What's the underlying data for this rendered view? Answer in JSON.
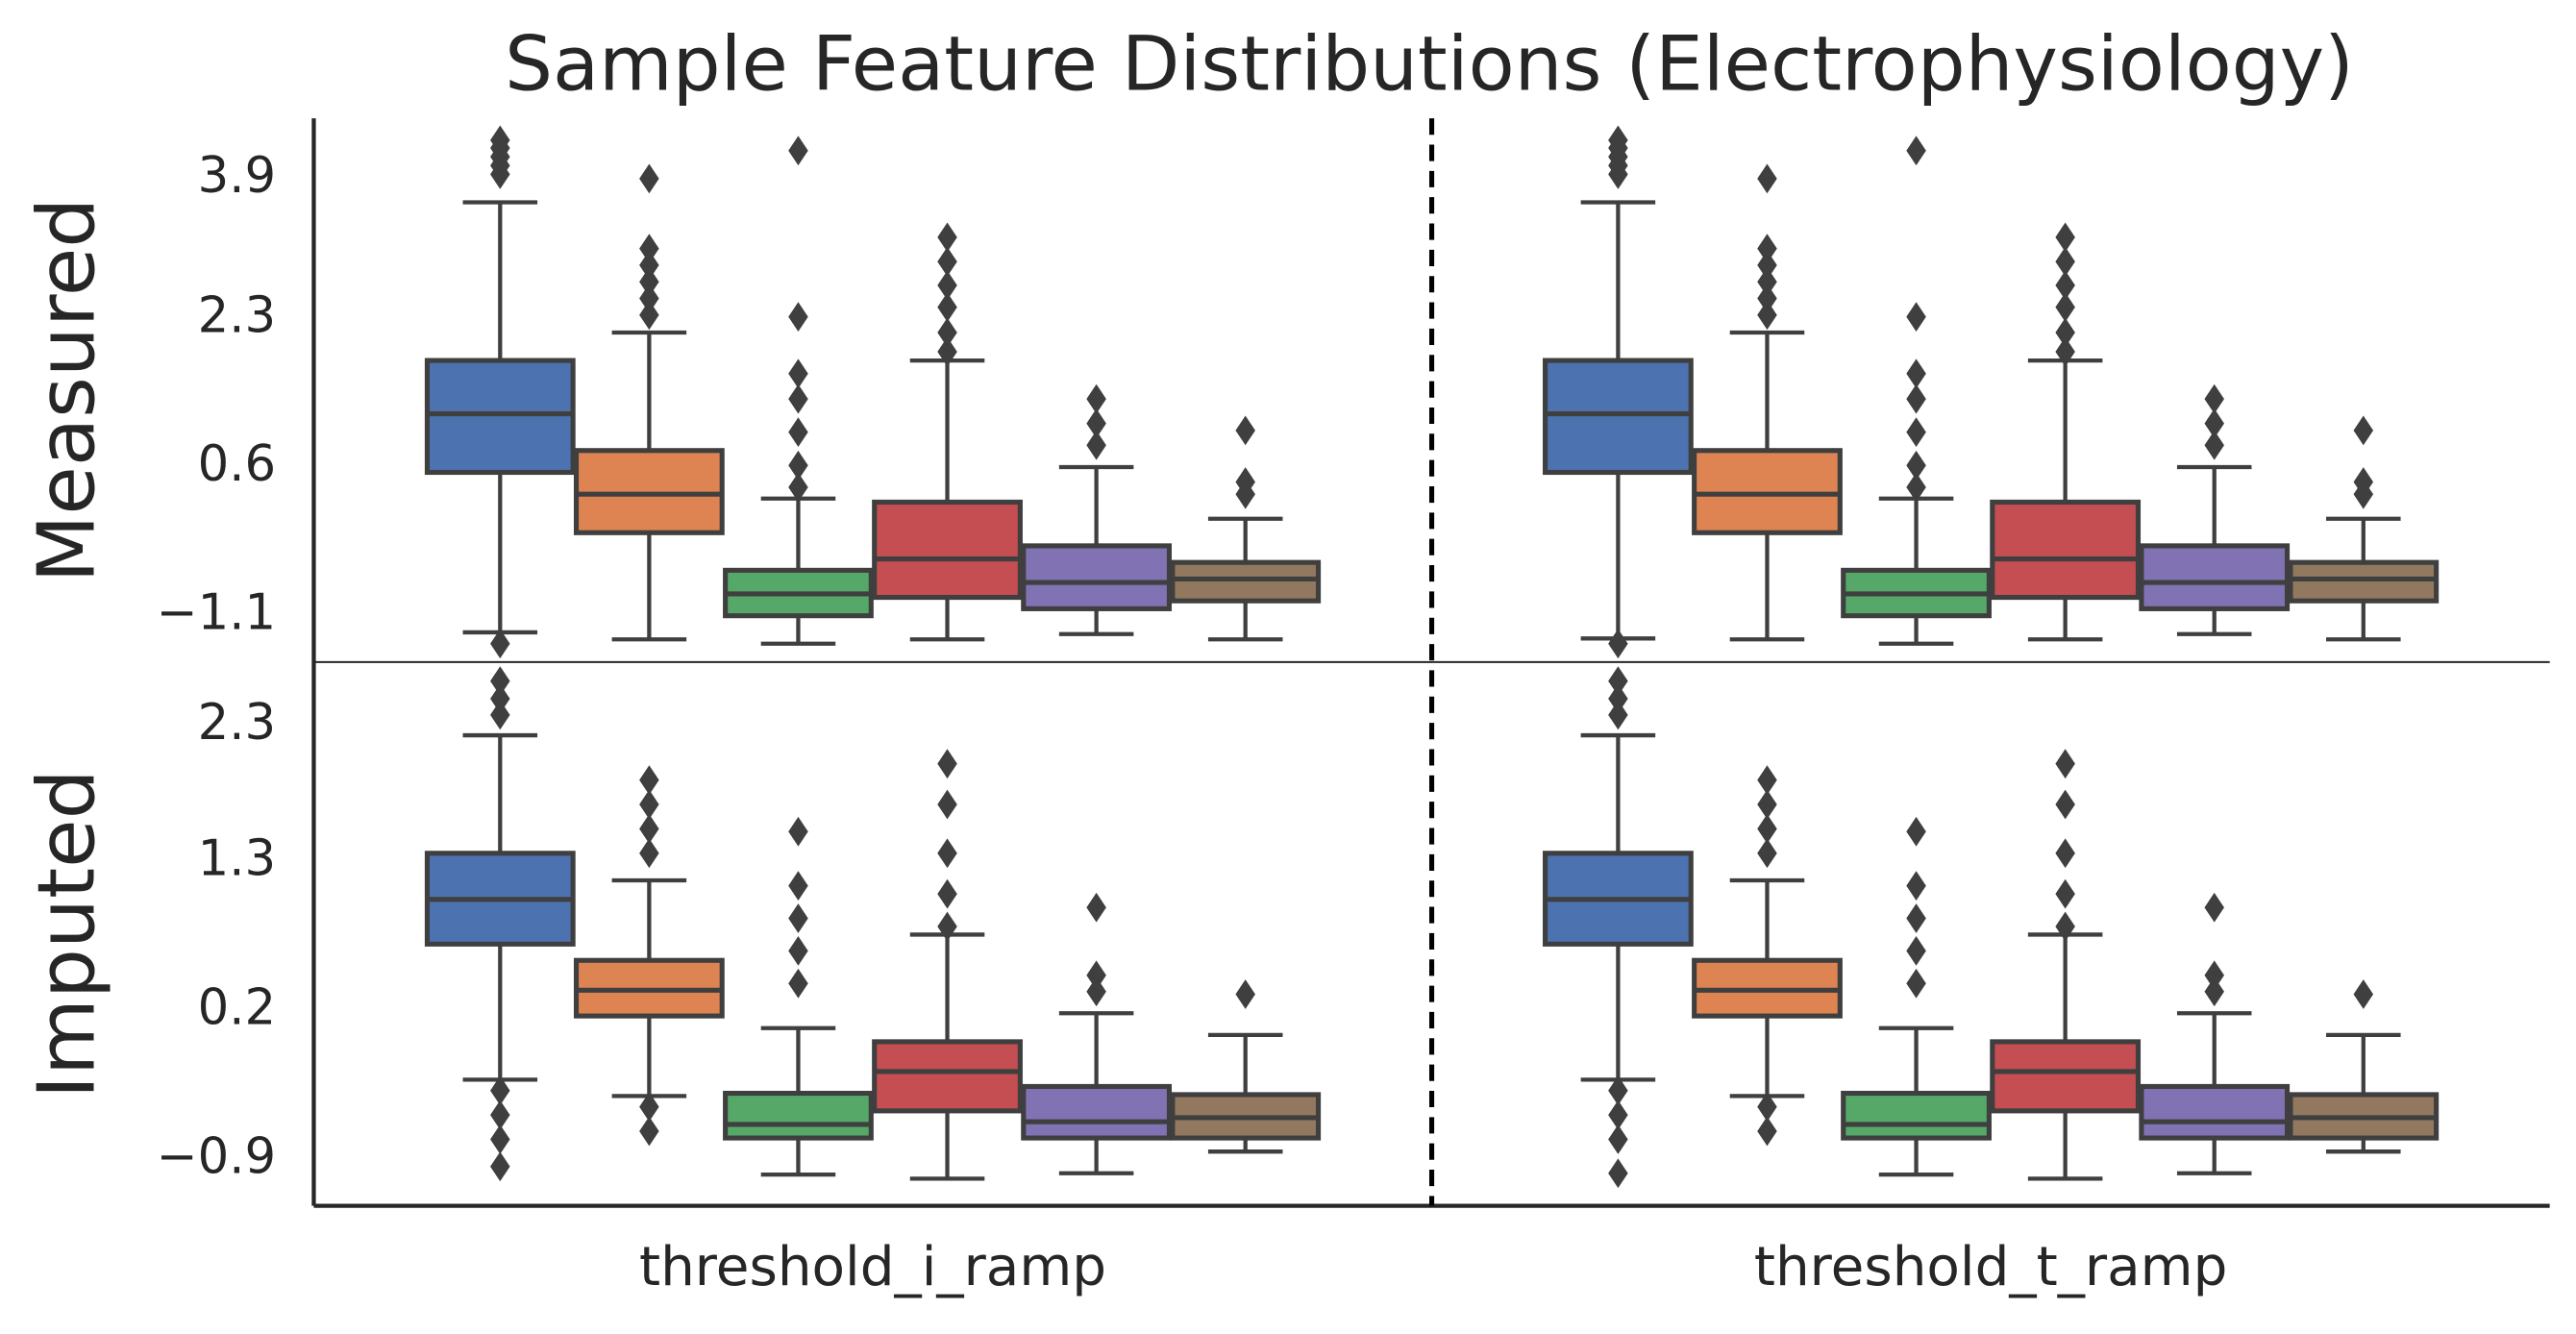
{
  "chart_data": {
    "type": "box",
    "title": "Sample Feature Distributions (Electrophysiology)",
    "categories": [
      "threshold_i_ramp",
      "threshold_t_ramp"
    ],
    "panels": [
      {
        "ylabel": "Measured",
        "ylim": [
          -1.63,
          4.59
        ],
        "yticks": [
          {
            "value": -1.1,
            "label": "−1.1"
          },
          0.6,
          2.3,
          3.9
        ],
        "series": [
          {
            "color": "#4c72b0",
            "whislo": [
              -1.29,
              -1.36
            ],
            "q1": [
              0.54,
              0.54
            ],
            "median": [
              1.21,
              1.21
            ],
            "q3": [
              1.82,
              1.82
            ],
            "whishi": [
              3.63,
              3.63
            ],
            "fliers": [
              [
                4.34,
                4.25,
                4.15,
                4.05,
                3.95,
                -1.42
              ],
              [
                4.34,
                4.25,
                4.15,
                4.05,
                3.95,
                -1.42
              ]
            ]
          },
          {
            "color": "#dd8452",
            "whislo": [
              -1.37,
              -1.37
            ],
            "q1": [
              -0.15,
              -0.15
            ],
            "median": [
              0.29,
              0.29
            ],
            "q3": [
              0.79,
              0.79
            ],
            "whishi": [
              2.14,
              2.14
            ],
            "fliers": [
              [
                3.9,
                3.1,
                2.91,
                2.72,
                2.53,
                2.34
              ],
              [
                3.9,
                3.1,
                2.91,
                2.72,
                2.53,
                2.34
              ]
            ]
          },
          {
            "color": "#55a868",
            "whislo": [
              -1.42,
              -1.42
            ],
            "q1": [
              -1.1,
              -1.1
            ],
            "median": [
              -0.85,
              -0.85
            ],
            "q3": [
              -0.58,
              -0.58
            ],
            "whishi": [
              0.24,
              0.24
            ],
            "fliers": [
              [
                4.22,
                2.32,
                1.67,
                1.38,
                1.0,
                0.62,
                0.37
              ],
              [
                4.22,
                2.32,
                1.67,
                1.38,
                1.0,
                0.62,
                0.37
              ]
            ]
          },
          {
            "color": "#c44e52",
            "whislo": [
              -1.37,
              -1.37
            ],
            "q1": [
              -0.89,
              -0.89
            ],
            "median": [
              -0.45,
              -0.45
            ],
            "q3": [
              0.2,
              0.2
            ],
            "whishi": [
              1.82,
              1.82
            ],
            "fliers": [
              [
                3.23,
                2.95,
                2.68,
                2.43,
                2.14,
                1.92
              ],
              [
                3.23,
                2.95,
                2.68,
                2.43,
                2.14,
                1.92
              ]
            ]
          },
          {
            "color": "#8172b3",
            "whislo": [
              -1.31,
              -1.31
            ],
            "q1": [
              -1.02,
              -1.02
            ],
            "median": [
              -0.72,
              -0.72
            ],
            "q3": [
              -0.3,
              -0.3
            ],
            "whishi": [
              0.6,
              0.6
            ],
            "fliers": [
              [
                1.38,
                1.1,
                0.85
              ],
              [
                1.38,
                1.1,
                0.85
              ]
            ]
          },
          {
            "color": "#937860",
            "whislo": [
              -1.37,
              -1.37
            ],
            "q1": [
              -0.93,
              -0.93
            ],
            "median": [
              -0.68,
              -0.68
            ],
            "q3": [
              -0.49,
              -0.49
            ],
            "whishi": [
              0.01,
              0.01
            ],
            "fliers": [
              [
                1.02,
                0.43,
                0.29
              ],
              [
                1.02,
                0.43,
                0.29
              ]
            ]
          }
        ]
      },
      {
        "ylabel": "Imputed",
        "ylim": [
          -1.24,
          2.77
        ],
        "yticks": [
          {
            "value": -0.9,
            "label": "−0.9"
          },
          0.2,
          1.3,
          2.3
        ],
        "series": [
          {
            "color": "#4c72b0",
            "whislo": [
              -0.31,
              -0.31
            ],
            "q1": [
              0.69,
              0.69
            ],
            "median": [
              1.02,
              1.02
            ],
            "q3": [
              1.36,
              1.36
            ],
            "whishi": [
              2.23,
              2.23
            ],
            "fliers": [
              [
                2.63,
                2.5,
                2.38,
                -0.39,
                -0.57,
                -0.75,
                -0.95
              ],
              [
                2.63,
                2.5,
                2.38,
                -0.39,
                -0.57,
                -0.75,
                -1.0
              ]
            ]
          },
          {
            "color": "#dd8452",
            "whislo": [
              -0.43,
              -0.43
            ],
            "q1": [
              0.16,
              0.16
            ],
            "median": [
              0.35,
              0.35
            ],
            "q3": [
              0.57,
              0.57
            ],
            "whishi": [
              1.16,
              1.16
            ],
            "fliers": [
              [
                1.9,
                1.72,
                1.54,
                1.36,
                -0.51,
                -0.69
              ],
              [
                1.9,
                1.72,
                1.54,
                1.36,
                -0.51,
                -0.69
              ]
            ]
          },
          {
            "color": "#55a868",
            "whislo": [
              -1.01,
              -1.01
            ],
            "q1": [
              -0.74,
              -0.74
            ],
            "median": [
              -0.64,
              -0.64
            ],
            "q3": [
              -0.41,
              -0.41
            ],
            "whishi": [
              0.07,
              0.07
            ],
            "fliers": [
              [
                1.52,
                1.12,
                0.88,
                0.64,
                0.4
              ],
              [
                1.52,
                1.12,
                0.88,
                0.64,
                0.4
              ]
            ]
          },
          {
            "color": "#c44e52",
            "whislo": [
              -1.04,
              -1.04
            ],
            "q1": [
              -0.54,
              -0.54
            ],
            "median": [
              -0.25,
              -0.25
            ],
            "q3": [
              -0.03,
              -0.03
            ],
            "whishi": [
              0.76,
              0.76
            ],
            "fliers": [
              [
                2.02,
                1.72,
                1.36,
                1.06,
                0.82
              ],
              [
                2.02,
                1.72,
                1.36,
                1.06,
                0.82
              ]
            ]
          },
          {
            "color": "#8172b3",
            "whislo": [
              -1.0,
              -1.0
            ],
            "q1": [
              -0.74,
              -0.74
            ],
            "median": [
              -0.62,
              -0.62
            ],
            "q3": [
              -0.36,
              -0.36
            ],
            "whishi": [
              0.18,
              0.18
            ],
            "fliers": [
              [
                0.96,
                0.46,
                0.34
              ],
              [
                0.96,
                0.46,
                0.34
              ]
            ]
          },
          {
            "color": "#937860",
            "whislo": [
              -0.84,
              -0.84
            ],
            "q1": [
              -0.74,
              -0.74
            ],
            "median": [
              -0.59,
              -0.59
            ],
            "q3": [
              -0.42,
              -0.42
            ],
            "whishi": [
              0.02,
              0.02
            ],
            "fliers": [
              [
                0.32
              ],
              [
                0.32
              ]
            ]
          }
        ]
      }
    ]
  }
}
